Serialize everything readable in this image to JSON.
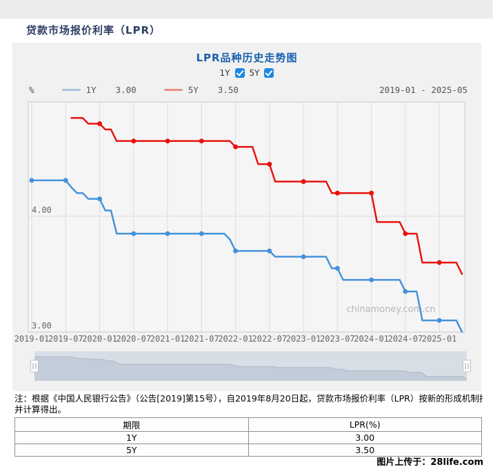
{
  "page": {
    "header_title": "贷款市场报价利率（LPR）",
    "attribution_label": "图片上传于：",
    "attribution_site": "28life.com"
  },
  "chart_panel": {
    "title": "LPR品种历史走势图",
    "toggles": [
      {
        "label": "1Y",
        "checked": true
      },
      {
        "label": "5Y",
        "checked": true
      }
    ],
    "legend": {
      "unit": "%",
      "items": [
        {
          "name": "1Y",
          "value": "3.00"
        },
        {
          "name": "5Y",
          "value": "3.50"
        }
      ],
      "range": "2019-01 - 2025-05"
    },
    "watermark": "chinamoney.com.cn"
  },
  "chart_data": {
    "type": "line",
    "title": "LPR品种历史走势图",
    "x_start": "2019-01",
    "x_end": "2025-05",
    "x_monthly": true,
    "x_tick_every_months": 6,
    "x_tick_labels": [
      "2019-01",
      "2019-07",
      "2020-01",
      "2020-07",
      "2021-01",
      "2021-07",
      "2022-01",
      "2022-07",
      "2023-01",
      "2023-07",
      "2024-01",
      "2024-07",
      "2025-01"
    ],
    "ylabel": "%",
    "y_axis_labels": [
      "4.00",
      "3.00"
    ],
    "y_gridlines": [
      4.0,
      3.0
    ],
    "ylim_plotted": [
      2.97,
      4.99
    ],
    "marker_every_months": 6,
    "legend_position": "top-left",
    "grid": true,
    "series": [
      {
        "name": "1Y",
        "latest": "3.00",
        "color": "#4592da",
        "legend_color": "#a9c3e2",
        "values": [
          4.31,
          4.31,
          4.31,
          4.31,
          4.31,
          4.31,
          4.31,
          4.25,
          4.2,
          4.2,
          4.15,
          4.15,
          4.15,
          4.05,
          4.05,
          3.85,
          3.85,
          3.85,
          3.85,
          3.85,
          3.85,
          3.85,
          3.85,
          3.85,
          3.85,
          3.85,
          3.85,
          3.85,
          3.85,
          3.85,
          3.85,
          3.85,
          3.85,
          3.85,
          3.85,
          3.8,
          3.7,
          3.7,
          3.7,
          3.7,
          3.7,
          3.7,
          3.7,
          3.65,
          3.65,
          3.65,
          3.65,
          3.65,
          3.65,
          3.65,
          3.65,
          3.65,
          3.65,
          3.55,
          3.55,
          3.45,
          3.45,
          3.45,
          3.45,
          3.45,
          3.45,
          3.45,
          3.45,
          3.45,
          3.45,
          3.45,
          3.35,
          3.35,
          3.35,
          3.1,
          3.1,
          3.1,
          3.1,
          3.1,
          3.1,
          3.1,
          3.0
        ]
      },
      {
        "name": "5Y",
        "latest": "3.50",
        "color": "#e8130d",
        "legend_color": "#ef8d86",
        "values": [
          null,
          null,
          null,
          null,
          null,
          null,
          null,
          4.85,
          4.85,
          4.85,
          4.8,
          4.8,
          4.8,
          4.75,
          4.75,
          4.65,
          4.65,
          4.65,
          4.65,
          4.65,
          4.65,
          4.65,
          4.65,
          4.65,
          4.65,
          4.65,
          4.65,
          4.65,
          4.65,
          4.65,
          4.65,
          4.65,
          4.65,
          4.65,
          4.65,
          4.65,
          4.6,
          4.6,
          4.6,
          4.6,
          4.45,
          4.45,
          4.45,
          4.3,
          4.3,
          4.3,
          4.3,
          4.3,
          4.3,
          4.3,
          4.3,
          4.3,
          4.3,
          4.2,
          4.2,
          4.2,
          4.2,
          4.2,
          4.2,
          4.2,
          4.2,
          3.95,
          3.95,
          3.95,
          3.95,
          3.95,
          3.85,
          3.85,
          3.85,
          3.6,
          3.6,
          3.6,
          3.6,
          3.6,
          3.6,
          3.6,
          3.5
        ]
      }
    ]
  },
  "note": {
    "line1": "注：根据《中国人民银行公告》（公告[2019]第15号），自2019年8月20日起，贷款市场报价利率（LPR）按新的形成机制报价",
    "line2": "并计算得出。"
  },
  "table": {
    "headers": [
      "期限",
      "LPR(%)"
    ],
    "rows": [
      [
        "1Y",
        "3.00"
      ],
      [
        "5Y",
        "3.50"
      ]
    ]
  },
  "colors": {
    "accent_checkbox": "#1e88e0",
    "header_text": "#2e3f63",
    "panel_title": "#1861ae",
    "panel_bg": "#f1f1f1",
    "plot_bg": "#f5f5f5",
    "grid_line": "#dcdcdc",
    "plot_border": "#c9c9c9",
    "axis_text": "#666666",
    "nav_track": "#d8dee6",
    "nav_fill": "#c3cdd9",
    "watermark_text": "#b5b5b5"
  }
}
